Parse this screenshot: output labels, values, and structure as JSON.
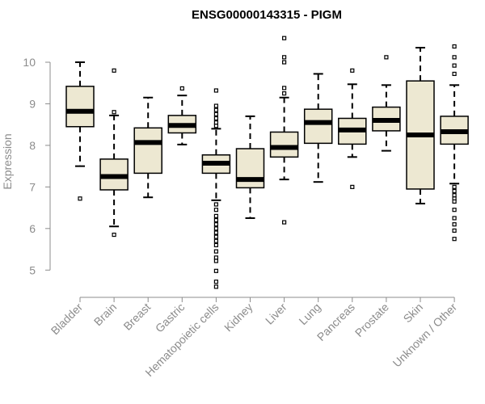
{
  "colors": {
    "box_fill": "#ede8d2",
    "stroke": "#000000",
    "axis": "#8c8c8c",
    "text_gray": "#8c8c8c",
    "title": "#000000"
  },
  "chart_data": {
    "type": "boxplot",
    "title": "ENSG00000143315 - PIGM",
    "xlabel": "",
    "ylabel": "Expression",
    "ylim": [
      4.5,
      10.7
    ],
    "yticks": [
      5,
      6,
      7,
      8,
      9,
      10
    ],
    "ytick_labels": [
      "5",
      "6",
      "7",
      "8",
      "9",
      "10"
    ],
    "categories": [
      "Bladder",
      "Brain",
      "Breast",
      "Gastric",
      "Hematopoietic cells",
      "Kidney",
      "Liver",
      "Lung",
      "Pancreas",
      "Prostate",
      "Skin",
      "Unknown / Other"
    ],
    "boxes": [
      {
        "name": "Bladder",
        "whisker_low": 7.5,
        "q1": 8.45,
        "median": 8.82,
        "q3": 9.42,
        "whisker_high": 10.0,
        "outliers": [
          6.72
        ]
      },
      {
        "name": "Brain",
        "whisker_low": 6.05,
        "q1": 6.93,
        "median": 7.25,
        "q3": 7.67,
        "whisker_high": 8.72,
        "outliers": [
          5.85,
          8.8,
          9.8
        ]
      },
      {
        "name": "Breast",
        "whisker_low": 6.75,
        "q1": 7.33,
        "median": 8.07,
        "q3": 8.42,
        "whisker_high": 9.15,
        "outliers": []
      },
      {
        "name": "Gastric",
        "whisker_low": 8.02,
        "q1": 8.3,
        "median": 8.48,
        "q3": 8.72,
        "whisker_high": 9.2,
        "outliers": [
          9.37
        ]
      },
      {
        "name": "Hematopoietic cells",
        "whisker_low": 6.68,
        "q1": 7.33,
        "median": 7.57,
        "q3": 7.77,
        "whisker_high": 8.4,
        "outliers": [
          9.32,
          8.95,
          8.85,
          8.75,
          8.65,
          8.55,
          8.47,
          6.58,
          6.45,
          6.3,
          6.2,
          6.1,
          6.0,
          5.9,
          5.8,
          5.7,
          5.6,
          5.45,
          5.3,
          5.22,
          4.98,
          4.72,
          4.6
        ]
      },
      {
        "name": "Kidney",
        "whisker_low": 6.25,
        "q1": 6.98,
        "median": 7.18,
        "q3": 7.92,
        "whisker_high": 8.7,
        "outliers": []
      },
      {
        "name": "Liver",
        "whisker_low": 7.18,
        "q1": 7.72,
        "median": 7.95,
        "q3": 8.32,
        "whisker_high": 9.15,
        "outliers": [
          10.58,
          10.12,
          10.0,
          9.38,
          9.25,
          6.15
        ]
      },
      {
        "name": "Lung",
        "whisker_low": 7.12,
        "q1": 8.05,
        "median": 8.55,
        "q3": 8.87,
        "whisker_high": 9.72,
        "outliers": []
      },
      {
        "name": "Pancreas",
        "whisker_low": 7.72,
        "q1": 8.03,
        "median": 8.37,
        "q3": 8.65,
        "whisker_high": 9.47,
        "outliers": [
          9.8,
          7.0
        ]
      },
      {
        "name": "Prostate",
        "whisker_low": 7.87,
        "q1": 8.35,
        "median": 8.6,
        "q3": 8.92,
        "whisker_high": 9.45,
        "outliers": [
          10.12
        ]
      },
      {
        "name": "Skin",
        "whisker_low": 6.6,
        "q1": 6.95,
        "median": 8.25,
        "q3": 9.55,
        "whisker_high": 10.35,
        "outliers": []
      },
      {
        "name": "Unknown / Other",
        "whisker_low": 7.08,
        "q1": 8.03,
        "median": 8.33,
        "q3": 8.7,
        "whisker_high": 9.45,
        "outliers": [
          10.38,
          10.12,
          9.92,
          9.72,
          7.0,
          6.9,
          6.8,
          6.72,
          6.65,
          6.45,
          6.25,
          6.1,
          5.95,
          5.75
        ]
      }
    ]
  }
}
